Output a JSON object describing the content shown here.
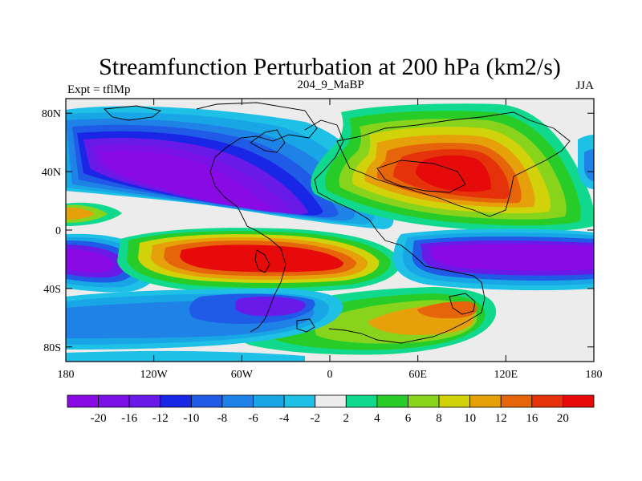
{
  "chart_data": {
    "type": "heatmap",
    "title": "Streamfunction Perturbation at 200 hPa (km2/s)",
    "subtitle_left": "Expt = tflMp",
    "subtitle_center": "204_9_MaBP",
    "subtitle_right": "JJA",
    "xaxis": {
      "range": [
        -180,
        180
      ],
      "ticks": [
        -180,
        -120,
        -60,
        0,
        60,
        120,
        180
      ],
      "tick_labels": [
        "180",
        "120W",
        "60W",
        "0",
        "60E",
        "120E",
        "180"
      ]
    },
    "yaxis": {
      "range": [
        -90,
        90
      ],
      "ticks": [
        80,
        40,
        0,
        -40,
        -80
      ],
      "tick_labels": [
        "80N",
        "40N",
        "0",
        "40S",
        "80S"
      ]
    },
    "colorbar": {
      "levels": [
        -20,
        -16,
        -12,
        -10,
        -8,
        -6,
        -4,
        -2,
        2,
        4,
        6,
        8,
        10,
        12,
        16,
        20
      ],
      "labels": [
        "-20",
        "-16",
        "-12",
        "-10",
        "-8",
        "-6",
        "-4",
        "-2",
        "2",
        "4",
        "6",
        "8",
        "10",
        "12",
        "16",
        "20"
      ],
      "colors": [
        "#8a0ae6",
        "#7a12e8",
        "#6a1ae8",
        "#1a26e6",
        "#1f5be6",
        "#1e82e6",
        "#18a6e6",
        "#1ec0e6",
        "#ececec",
        "#10d88c",
        "#28cc28",
        "#88d41c",
        "#d2d20a",
        "#e6a00a",
        "#e6640a",
        "#e6320a",
        "#e60a0a"
      ]
    },
    "features": [
      {
        "name": "NH Pacific/N America low",
        "lon": -95,
        "lat": 40,
        "value": -20
      },
      {
        "name": "NH Asia high",
        "lon": 80,
        "lat": 40,
        "value": 20
      },
      {
        "name": "SH Atlantic/S America high",
        "lon": -40,
        "lat": -18,
        "value": 20
      },
      {
        "name": "SH Indian Ocean low",
        "lon": 110,
        "lat": -22,
        "value": -20
      },
      {
        "name": "SH Pacific low",
        "lon": -165,
        "lat": -22,
        "value": -16
      },
      {
        "name": "SH Indian high",
        "lon": 85,
        "lat": -50,
        "value": 12
      },
      {
        "name": "SH Pacific high-lat low",
        "lon": -50,
        "lat": -52,
        "value": -12
      }
    ]
  }
}
